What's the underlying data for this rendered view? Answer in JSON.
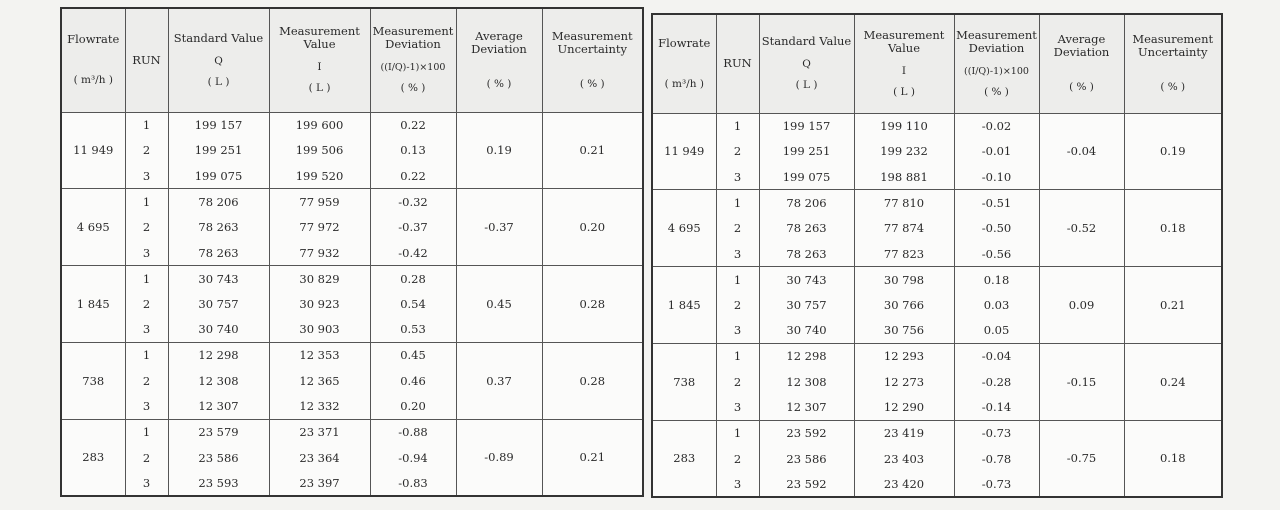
{
  "headers": {
    "flowrate": "Flowrate",
    "flowrate_unit": "( m³/h )",
    "run": "RUN",
    "standard_value": "Standard Value",
    "standard_symbol": "Q",
    "standard_unit": "( L )",
    "measurement_value": "Measurement Value",
    "measurement_symbol": "I",
    "measurement_unit": "( L )",
    "measurement_deviation": "Measurement Deviation",
    "deviation_formula": "((I/Q)-1)×100",
    "deviation_unit": "( % )",
    "average_deviation": "Average Deviation",
    "average_unit": "( % )",
    "uncertainty": "Measurement Uncertainty",
    "uncertainty_unit": "( % )"
  },
  "tables": [
    {
      "groups": [
        {
          "flowrate": "11 949",
          "avg": "0.19",
          "unc": "0.21",
          "runs": [
            {
              "run": "1",
              "q": "199 157",
              "i": "199 600",
              "dev": "0.22"
            },
            {
              "run": "2",
              "q": "199 251",
              "i": "199 506",
              "dev": "0.13"
            },
            {
              "run": "3",
              "q": "199 075",
              "i": "199 520",
              "dev": "0.22"
            }
          ]
        },
        {
          "flowrate": "4 695",
          "avg": "-0.37",
          "unc": "0.20",
          "runs": [
            {
              "run": "1",
              "q": "78 206",
              "i": "77 959",
              "dev": "-0.32"
            },
            {
              "run": "2",
              "q": "78 263",
              "i": "77 972",
              "dev": "-0.37"
            },
            {
              "run": "3",
              "q": "78 263",
              "i": "77 932",
              "dev": "-0.42"
            }
          ]
        },
        {
          "flowrate": "1 845",
          "avg": "0.45",
          "unc": "0.28",
          "runs": [
            {
              "run": "1",
              "q": "30 743",
              "i": "30 829",
              "dev": "0.28"
            },
            {
              "run": "2",
              "q": "30 757",
              "i": "30 923",
              "dev": "0.54"
            },
            {
              "run": "3",
              "q": "30 740",
              "i": "30 903",
              "dev": "0.53"
            }
          ]
        },
        {
          "flowrate": "738",
          "avg": "0.37",
          "unc": "0.28",
          "runs": [
            {
              "run": "1",
              "q": "12 298",
              "i": "12 353",
              "dev": "0.45"
            },
            {
              "run": "2",
              "q": "12 308",
              "i": "12 365",
              "dev": "0.46"
            },
            {
              "run": "3",
              "q": "12 307",
              "i": "12 332",
              "dev": "0.20"
            }
          ]
        },
        {
          "flowrate": "283",
          "avg": "-0.89",
          "unc": "0.21",
          "runs": [
            {
              "run": "1",
              "q": "23 579",
              "i": "23 371",
              "dev": "-0.88"
            },
            {
              "run": "2",
              "q": "23 586",
              "i": "23 364",
              "dev": "-0.94"
            },
            {
              "run": "3",
              "q": "23 593",
              "i": "23 397",
              "dev": "-0.83"
            }
          ]
        }
      ]
    },
    {
      "groups": [
        {
          "flowrate": "11 949",
          "avg": "-0.04",
          "unc": "0.19",
          "runs": [
            {
              "run": "1",
              "q": "199 157",
              "i": "199 110",
              "dev": "-0.02"
            },
            {
              "run": "2",
              "q": "199 251",
              "i": "199 232",
              "dev": "-0.01"
            },
            {
              "run": "3",
              "q": "199 075",
              "i": "198 881",
              "dev": "-0.10"
            }
          ]
        },
        {
          "flowrate": "4 695",
          "avg": "-0.52",
          "unc": "0.18",
          "runs": [
            {
              "run": "1",
              "q": "78 206",
              "i": "77 810",
              "dev": "-0.51"
            },
            {
              "run": "2",
              "q": "78 263",
              "i": "77 874",
              "dev": "-0.50"
            },
            {
              "run": "3",
              "q": "78 263",
              "i": "77 823",
              "dev": "-0.56"
            }
          ]
        },
        {
          "flowrate": "1 845",
          "avg": "0.09",
          "unc": "0.21",
          "runs": [
            {
              "run": "1",
              "q": "30 743",
              "i": "30 798",
              "dev": "0.18"
            },
            {
              "run": "2",
              "q": "30 757",
              "i": "30 766",
              "dev": "0.03"
            },
            {
              "run": "3",
              "q": "30 740",
              "i": "30 756",
              "dev": "0.05"
            }
          ]
        },
        {
          "flowrate": "738",
          "avg": "-0.15",
          "unc": "0.24",
          "runs": [
            {
              "run": "1",
              "q": "12 298",
              "i": "12 293",
              "dev": "-0.04"
            },
            {
              "run": "2",
              "q": "12 308",
              "i": "12 273",
              "dev": "-0.28"
            },
            {
              "run": "3",
              "q": "12 307",
              "i": "12 290",
              "dev": "-0.14"
            }
          ]
        },
        {
          "flowrate": "283",
          "avg": "-0.75",
          "unc": "0.18",
          "runs": [
            {
              "run": "1",
              "q": "23 592",
              "i": "23 419",
              "dev": "-0.73"
            },
            {
              "run": "2",
              "q": "23 586",
              "i": "23 403",
              "dev": "-0.78"
            },
            {
              "run": "3",
              "q": "23 592",
              "i": "23 420",
              "dev": "-0.73"
            }
          ]
        }
      ]
    }
  ]
}
